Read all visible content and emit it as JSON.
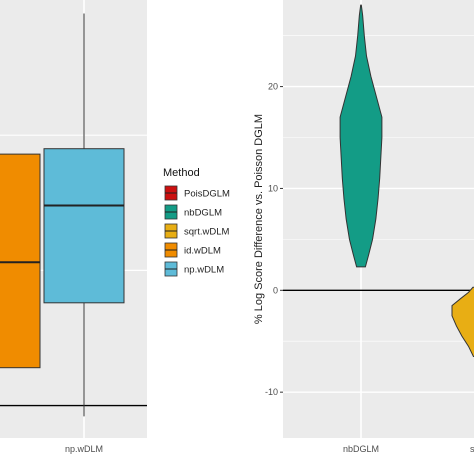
{
  "colors": {
    "panel_bg": "#ebebeb",
    "grid": "#ffffff",
    "PoisDGLM": "#cc1010",
    "nbDGLM": "#139c86",
    "sqrt.wDLM": "#e8ae14",
    "id.wDLM": "#f08c00",
    "np.wDLM": "#5ebbd8"
  },
  "chart_data": [
    {
      "type": "box",
      "title": "",
      "xlabel": "",
      "ylabel": "",
      "categories": [
        "id.wDLM",
        "np.wDLM"
      ],
      "visible_tick_labels": [
        "np.wDLM"
      ],
      "boxes": [
        {
          "name": "id.wDLM",
          "q1": 0.14,
          "median": 0.53,
          "q3": 0.93,
          "whisker_low": null,
          "whisker_high": null,
          "partially_cropped": true
        },
        {
          "name": "np.wDLM",
          "q1": 0.38,
          "median": 0.74,
          "q3": 0.95,
          "whisker_low": -0.04,
          "whisker_high": 1.45
        }
      ],
      "reference_line": 0,
      "y_range_unlabeled": [
        -0.12,
        1.5
      ],
      "grid": true
    },
    {
      "type": "violin",
      "title": "",
      "xlabel": "",
      "ylabel": "% Log Score Difference vs. Poisson DGLM",
      "categories": [
        "nbDGLM",
        "sqrt.wDLM"
      ],
      "visible_tick_labels": [
        "nbDGLM",
        "s"
      ],
      "y_ticks": [
        -10,
        0,
        10,
        20
      ],
      "ylim": [
        -14.5,
        28.5
      ],
      "reference_line": 0,
      "grid": true,
      "violins": [
        {
          "name": "nbDGLM",
          "profile": [
            [
              2.3,
              4.0
            ],
            [
              3.5,
              7.0
            ],
            [
              5,
              10.5
            ],
            [
              7,
              13.5
            ],
            [
              9,
              15.5
            ],
            [
              11,
              17
            ],
            [
              13,
              18
            ],
            [
              15,
              19
            ],
            [
              17,
              19
            ],
            [
              19,
              14
            ],
            [
              21,
              9
            ],
            [
              23,
              5
            ],
            [
              25,
              3
            ],
            [
              27,
              1.5
            ],
            [
              28,
              0.3
            ]
          ]
        },
        {
          "name": "sqrt.wDLM",
          "partially_cropped": true,
          "profile": [
            [
              -6.5,
              0.5
            ],
            [
              -5.5,
              5
            ],
            [
              -4.5,
              11
            ],
            [
              -3.5,
              16
            ],
            [
              -2.5,
              20
            ],
            [
              -1.5,
              20
            ],
            [
              -0.8,
              12
            ],
            [
              -0.2,
              5
            ],
            [
              0.3,
              1
            ]
          ]
        }
      ]
    }
  ],
  "legend": {
    "title": "Method",
    "position": "center",
    "items": [
      {
        "label": "PoisDGLM",
        "key": "PoisDGLM"
      },
      {
        "label": "nbDGLM",
        "key": "nbDGLM"
      },
      {
        "label": "sqrt.wDLM",
        "key": "sqrt.wDLM"
      },
      {
        "label": "id.wDLM",
        "key": "id.wDLM"
      },
      {
        "label": "np.wDLM",
        "key": "np.wDLM"
      }
    ]
  }
}
